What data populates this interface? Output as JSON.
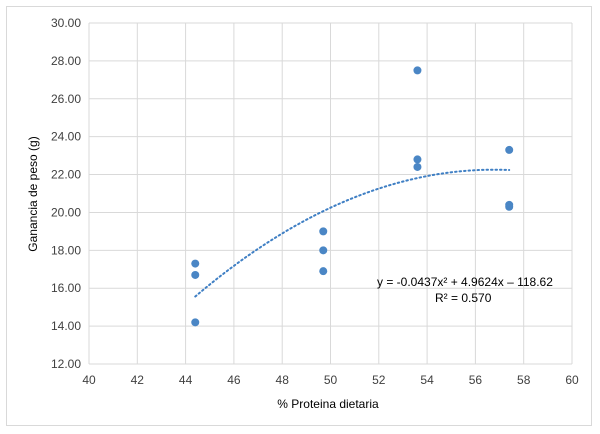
{
  "chart_data": {
    "type": "scatter",
    "xlabel": "% Proteina dietaria",
    "ylabel": "Ganancia de peso (g)",
    "xlim": [
      40,
      60
    ],
    "ylim": [
      12,
      30
    ],
    "x_ticks": [
      "40",
      "42",
      "44",
      "46",
      "48",
      "50",
      "52",
      "54",
      "56",
      "58",
      "60"
    ],
    "y_ticks": [
      "12.00",
      "14.00",
      "16.00",
      "18.00",
      "20.00",
      "22.00",
      "24.00",
      "26.00",
      "28.00",
      "30.00"
    ],
    "grid": "vertical and horizontal",
    "points": [
      {
        "x": 44.4,
        "y": 17.3
      },
      {
        "x": 44.4,
        "y": 16.7
      },
      {
        "x": 44.4,
        "y": 14.2
      },
      {
        "x": 49.7,
        "y": 19.0
      },
      {
        "x": 49.7,
        "y": 18.0
      },
      {
        "x": 49.7,
        "y": 16.9
      },
      {
        "x": 53.6,
        "y": 27.5
      },
      {
        "x": 53.6,
        "y": 22.8
      },
      {
        "x": 53.6,
        "y": 22.4
      },
      {
        "x": 57.4,
        "y": 23.3
      },
      {
        "x": 57.4,
        "y": 20.4
      },
      {
        "x": 57.4,
        "y": 20.3
      }
    ],
    "trendline": {
      "type": "polynomial",
      "coefficients": [
        -0.0437,
        4.9624,
        -118.62
      ],
      "x_range": [
        44.4,
        57.4
      ],
      "style": "dotted"
    },
    "equation_text": "y = -0.0437x² + 4.9624x – 118.62",
    "r2_text": "R² = 0.570",
    "colors": {
      "marker": "#4a86c5",
      "trendline": "#3f7fc4",
      "grid": "#d9d9d9"
    }
  }
}
